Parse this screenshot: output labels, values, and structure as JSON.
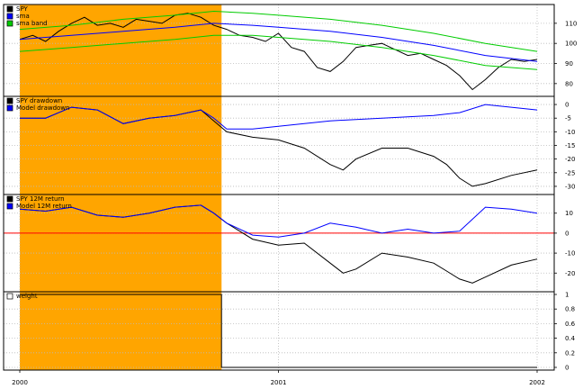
{
  "chart_data": [
    {
      "type": "line",
      "panel": "price",
      "legend": [
        "SPY",
        "sma",
        "sma band"
      ],
      "legend_colors": [
        "#000000",
        "#0000ff",
        "#00cc00"
      ],
      "ylim": [
        75,
        118
      ],
      "yticks": [
        80,
        90,
        100,
        110
      ],
      "series": [
        {
          "name": "SPY",
          "color": "#000000",
          "x": [
            2000.0,
            2000.05,
            2000.1,
            2000.15,
            2000.2,
            2000.25,
            2000.3,
            2000.35,
            2000.4,
            2000.45,
            2000.5,
            2000.55,
            2000.6,
            2000.65,
            2000.7,
            2000.75,
            2000.8,
            2000.85,
            2000.9,
            2000.95,
            2001.0,
            2001.05,
            2001.1,
            2001.15,
            2001.2,
            2001.25,
            2001.3,
            2001.35,
            2001.4,
            2001.45,
            2001.5,
            2001.55,
            2001.6,
            2001.65,
            2001.7,
            2001.75,
            2001.8,
            2001.85,
            2001.9,
            2001.95,
            2002.0
          ],
          "values": [
            102,
            104,
            101,
            106,
            110,
            113,
            109,
            110,
            108,
            112,
            111,
            110,
            114,
            115,
            113,
            109,
            107,
            104,
            103,
            101,
            105,
            98,
            96,
            88,
            86,
            91,
            98,
            99,
            100,
            97,
            94,
            95,
            92,
            89,
            84,
            77,
            82,
            88,
            92,
            91,
            92
          ]
        },
        {
          "name": "sma",
          "color": "#0000ff",
          "x": [
            2000.0,
            2000.2,
            2000.4,
            2000.6,
            2000.75,
            2000.9,
            2001.0,
            2001.2,
            2001.4,
            2001.6,
            2001.8,
            2002.0
          ],
          "values": [
            102,
            104,
            106,
            108,
            110,
            109,
            108,
            106,
            103,
            99,
            94,
            91
          ]
        },
        {
          "name": "sma band upper",
          "color": "#00cc00",
          "x": [
            2000.0,
            2000.2,
            2000.4,
            2000.6,
            2000.75,
            2000.9,
            2001.0,
            2001.2,
            2001.4,
            2001.6,
            2001.8,
            2002.0
          ],
          "values": [
            107,
            109,
            112,
            114,
            116,
            115,
            114,
            112,
            109,
            105,
            100,
            96
          ]
        },
        {
          "name": "sma band lower",
          "color": "#00cc00",
          "x": [
            2000.0,
            2000.2,
            2000.4,
            2000.6,
            2000.75,
            2000.9,
            2001.0,
            2001.2,
            2001.4,
            2001.6,
            2001.8,
            2002.0
          ],
          "values": [
            96,
            98,
            100,
            102,
            104,
            104,
            103,
            101,
            98,
            94,
            89,
            87
          ]
        }
      ]
    },
    {
      "type": "line",
      "panel": "drawdown",
      "legend": [
        "SPY drawdown",
        "Model drawdown"
      ],
      "legend_colors": [
        "#000000",
        "#0000ff"
      ],
      "ylim": [
        -32,
        2
      ],
      "yticks": [
        0,
        -5,
        -10,
        -15,
        -20,
        -25,
        -30
      ],
      "series": [
        {
          "name": "SPY drawdown",
          "color": "#000000",
          "x": [
            2000.0,
            2000.1,
            2000.2,
            2000.3,
            2000.4,
            2000.5,
            2000.6,
            2000.7,
            2000.75,
            2000.8,
            2000.9,
            2001.0,
            2001.1,
            2001.2,
            2001.25,
            2001.3,
            2001.4,
            2001.5,
            2001.6,
            2001.65,
            2001.7,
            2001.75,
            2001.8,
            2001.9,
            2002.0
          ],
          "values": [
            -5,
            -5,
            -1,
            -2,
            -7,
            -5,
            -4,
            -2,
            -6,
            -10,
            -12,
            -13,
            -16,
            -22,
            -24,
            -20,
            -16,
            -16,
            -19,
            -22,
            -27,
            -30,
            -29,
            -26,
            -24
          ]
        },
        {
          "name": "Model drawdown",
          "color": "#0000ff",
          "x": [
            2000.0,
            2000.1,
            2000.2,
            2000.3,
            2000.4,
            2000.5,
            2000.6,
            2000.7,
            2000.75,
            2000.8,
            2000.9,
            2001.0,
            2001.2,
            2001.4,
            2001.6,
            2001.7,
            2001.8,
            2001.9,
            2002.0
          ],
          "values": [
            -5,
            -5,
            -1,
            -2,
            -7,
            -5,
            -4,
            -2,
            -5,
            -9,
            -9,
            -8,
            -6,
            -5,
            -4,
            -3,
            0,
            -1,
            -2
          ]
        }
      ]
    },
    {
      "type": "line",
      "panel": "return12m",
      "legend": [
        "SPY 12M return",
        "Model 12M return"
      ],
      "legend_colors": [
        "#000000",
        "#0000ff"
      ],
      "ylim": [
        -28,
        18
      ],
      "yticks": [
        10,
        0,
        -10,
        -20
      ],
      "hline": {
        "value": 0,
        "color": "#ff0000"
      },
      "series": [
        {
          "name": "SPY 12M return",
          "color": "#000000",
          "x": [
            2000.0,
            2000.1,
            2000.2,
            2000.3,
            2000.4,
            2000.5,
            2000.6,
            2000.7,
            2000.75,
            2000.8,
            2000.9,
            2001.0,
            2001.1,
            2001.2,
            2001.25,
            2001.3,
            2001.4,
            2001.5,
            2001.6,
            2001.65,
            2001.7,
            2001.75,
            2001.8,
            2001.9,
            2002.0
          ],
          "values": [
            12,
            11,
            13,
            9,
            8,
            10,
            13,
            14,
            10,
            5,
            -3,
            -6,
            -5,
            -15,
            -20,
            -18,
            -10,
            -12,
            -15,
            -19,
            -23,
            -25,
            -22,
            -16,
            -13
          ]
        },
        {
          "name": "Model 12M return",
          "color": "#0000ff",
          "x": [
            2000.0,
            2000.1,
            2000.2,
            2000.3,
            2000.4,
            2000.5,
            2000.6,
            2000.7,
            2000.75,
            2000.8,
            2000.9,
            2001.0,
            2001.1,
            2001.2,
            2001.3,
            2001.4,
            2001.5,
            2001.6,
            2001.7,
            2001.8,
            2001.9,
            2002.0
          ],
          "values": [
            12,
            11,
            13,
            9,
            8,
            10,
            13,
            14,
            10,
            5,
            -1,
            -2,
            0,
            5,
            3,
            0,
            2,
            0,
            1,
            13,
            12,
            10
          ]
        }
      ]
    },
    {
      "type": "line",
      "panel": "weight",
      "legend": [
        "weight"
      ],
      "legend_colors": [
        "#ffffff"
      ],
      "ylim": [
        0,
        1
      ],
      "yticks": [
        0,
        0.2,
        0.4,
        0.6,
        0.8,
        1
      ],
      "series": [
        {
          "name": "weight",
          "color": "#000000",
          "x": [
            2000.0,
            2000.78,
            2000.78,
            2002.0
          ],
          "values": [
            1,
            1,
            0,
            0
          ]
        }
      ]
    }
  ],
  "x_axis": {
    "range": [
      1999.98,
      2002.1
    ],
    "ticks": [
      2000,
      2001,
      2002
    ],
    "tick_labels": [
      "2000",
      "2001",
      "2002"
    ]
  },
  "shade": {
    "from": 2000.0,
    "to": 2000.78,
    "color": "#ffa500"
  }
}
